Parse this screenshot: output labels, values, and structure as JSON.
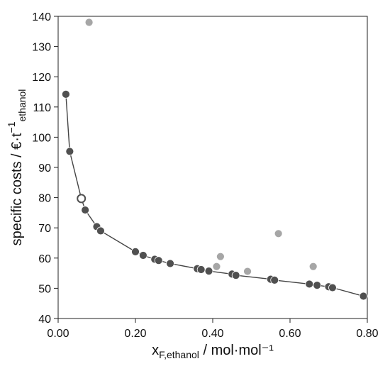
{
  "chart_data": {
    "type": "scatter",
    "title": "",
    "xlabel": {
      "main": "x",
      "sub": "F,ethanol",
      "rest": " / mol·mol⁻¹"
    },
    "ylabel": {
      "main": "specific costs / €·t",
      "sup": "−1",
      "sub": "ethanol"
    },
    "xlim": [
      0.0,
      0.8
    ],
    "ylim": [
      40,
      140
    ],
    "x_ticks": [
      {
        "value": 0.0,
        "label": "0.00"
      },
      {
        "value": 0.2,
        "label": "0.20"
      },
      {
        "value": 0.4,
        "label": "0.40"
      },
      {
        "value": 0.6,
        "label": "0.60"
      },
      {
        "value": 0.8,
        "label": "0.80"
      }
    ],
    "y_ticks": [
      {
        "value": 40,
        "label": "40"
      },
      {
        "value": 50,
        "label": "50"
      },
      {
        "value": 60,
        "label": "60"
      },
      {
        "value": 70,
        "label": "70"
      },
      {
        "value": 80,
        "label": "80"
      },
      {
        "value": 90,
        "label": "90"
      },
      {
        "value": 100,
        "label": "100"
      },
      {
        "value": 110,
        "label": "110"
      },
      {
        "value": 120,
        "label": "120"
      },
      {
        "value": 130,
        "label": "130"
      },
      {
        "value": 140,
        "label": "140"
      }
    ],
    "grid": false,
    "series": [
      {
        "marker": "filled-dark",
        "color": "#505050",
        "connected": true,
        "points": [
          [
            0.02,
            114.2
          ],
          [
            0.03,
            95.3
          ],
          [
            0.07,
            75.9
          ],
          [
            0.1,
            70.4
          ],
          [
            0.11,
            69.0
          ],
          [
            0.2,
            62.1
          ],
          [
            0.22,
            60.9
          ],
          [
            0.25,
            59.6
          ],
          [
            0.26,
            59.2
          ],
          [
            0.29,
            58.2
          ],
          [
            0.36,
            56.5
          ],
          [
            0.37,
            56.2
          ],
          [
            0.39,
            55.7
          ],
          [
            0.45,
            54.7
          ],
          [
            0.46,
            54.3
          ],
          [
            0.55,
            53.0
          ],
          [
            0.56,
            52.7
          ],
          [
            0.65,
            51.4
          ],
          [
            0.67,
            51.0
          ],
          [
            0.7,
            50.5
          ],
          [
            0.71,
            50.2
          ],
          [
            0.79,
            47.4
          ]
        ]
      },
      {
        "marker": "open",
        "color": "#505050",
        "connected": true,
        "points": [
          [
            0.06,
            79.7
          ]
        ]
      },
      {
        "marker": "filled-light",
        "color": "#a6a6a6",
        "connected": false,
        "points": [
          [
            0.08,
            138.0
          ],
          [
            0.41,
            57.2
          ],
          [
            0.42,
            60.5
          ],
          [
            0.49,
            55.6
          ],
          [
            0.57,
            68.1
          ],
          [
            0.66,
            57.2
          ]
        ]
      }
    ]
  }
}
